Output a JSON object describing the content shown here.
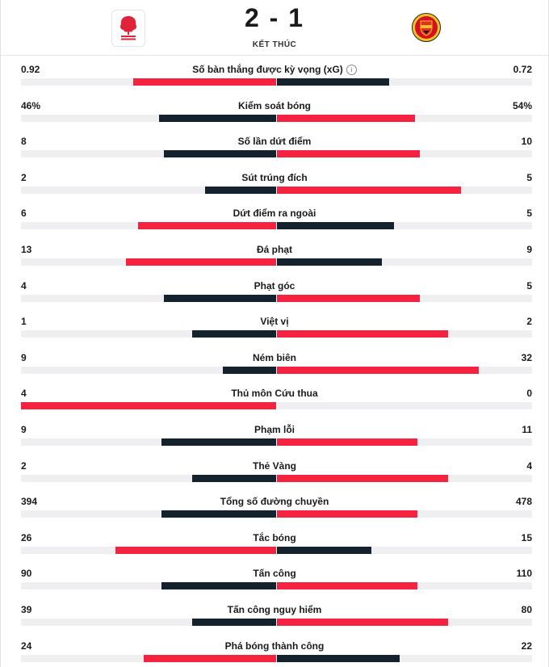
{
  "match": {
    "score": "2 - 1",
    "status": "KẾT THÚC",
    "home_team": "Nottingham Forest",
    "away_team": "Manchester United"
  },
  "colors": {
    "home": "#f5233f",
    "away": "#14222e",
    "track": "#efeff2"
  },
  "stats": [
    {
      "label": "Số bàn thắng được kỳ vọng (xG)",
      "home": "0.92",
      "away": "0.72",
      "home_ratio": 0.56,
      "away_ratio": 0.44,
      "home_color": "red",
      "away_color": "dark",
      "info": true
    },
    {
      "label": "Kiểm soát bóng",
      "home": "46%",
      "away": "54%",
      "home_ratio": 0.46,
      "away_ratio": 0.54,
      "home_color": "dark",
      "away_color": "red"
    },
    {
      "label": "Số lần dứt điểm",
      "home": "8",
      "away": "10",
      "home_ratio": 0.44,
      "away_ratio": 0.56,
      "home_color": "dark",
      "away_color": "red"
    },
    {
      "label": "Sút trúng đích",
      "home": "2",
      "away": "5",
      "home_ratio": 0.28,
      "away_ratio": 0.72,
      "home_color": "dark",
      "away_color": "red"
    },
    {
      "label": "Dứt điểm ra ngoài",
      "home": "6",
      "away": "5",
      "home_ratio": 0.54,
      "away_ratio": 0.46,
      "home_color": "red",
      "away_color": "dark"
    },
    {
      "label": "Đá phạt",
      "home": "13",
      "away": "9",
      "home_ratio": 0.59,
      "away_ratio": 0.41,
      "home_color": "red",
      "away_color": "dark"
    },
    {
      "label": "Phạt góc",
      "home": "4",
      "away": "5",
      "home_ratio": 0.44,
      "away_ratio": 0.56,
      "home_color": "dark",
      "away_color": "red"
    },
    {
      "label": "Việt vị",
      "home": "1",
      "away": "2",
      "home_ratio": 0.33,
      "away_ratio": 0.67,
      "home_color": "dark",
      "away_color": "red"
    },
    {
      "label": "Ném biên",
      "home": "9",
      "away": "32",
      "home_ratio": 0.21,
      "away_ratio": 0.79,
      "home_color": "dark",
      "away_color": "red"
    },
    {
      "label": "Thủ môn Cứu thua",
      "home": "4",
      "away": "0",
      "home_ratio": 1.0,
      "away_ratio": 0.0,
      "home_color": "red",
      "away_color": "dark"
    },
    {
      "label": "Phạm lỗi",
      "home": "9",
      "away": "11",
      "home_ratio": 0.45,
      "away_ratio": 0.55,
      "home_color": "dark",
      "away_color": "red"
    },
    {
      "label": "Thẻ Vàng",
      "home": "2",
      "away": "4",
      "home_ratio": 0.33,
      "away_ratio": 0.67,
      "home_color": "dark",
      "away_color": "red"
    },
    {
      "label": "Tổng số đường chuyền",
      "home": "394",
      "away": "478",
      "home_ratio": 0.45,
      "away_ratio": 0.55,
      "home_color": "dark",
      "away_color": "red"
    },
    {
      "label": "Tắc bóng",
      "home": "26",
      "away": "15",
      "home_ratio": 0.63,
      "away_ratio": 0.37,
      "home_color": "red",
      "away_color": "dark"
    },
    {
      "label": "Tấn công",
      "home": "90",
      "away": "110",
      "home_ratio": 0.45,
      "away_ratio": 0.55,
      "home_color": "dark",
      "away_color": "red"
    },
    {
      "label": "Tấn công nguy hiểm",
      "home": "39",
      "away": "80",
      "home_ratio": 0.33,
      "away_ratio": 0.67,
      "home_color": "dark",
      "away_color": "red"
    },
    {
      "label": "Phá bóng thành công",
      "home": "24",
      "away": "22",
      "home_ratio": 0.52,
      "away_ratio": 0.48,
      "home_color": "red",
      "away_color": "dark"
    }
  ]
}
